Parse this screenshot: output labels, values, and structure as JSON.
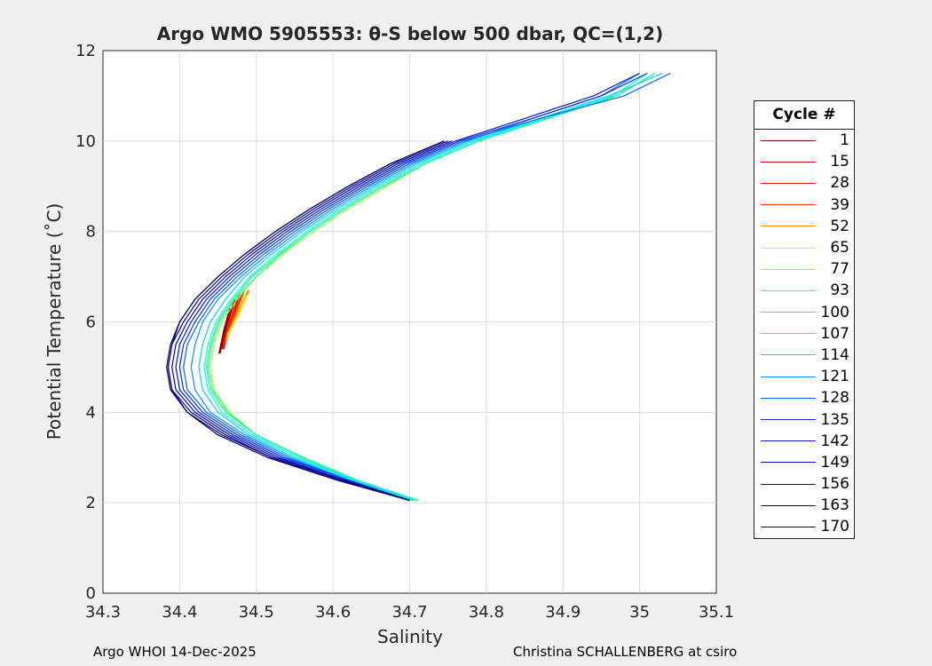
{
  "chart_data": {
    "type": "line",
    "title": "Argo WMO 5905553: θ-S below 500 dbar,  QC=(1,2)",
    "xlabel": "Salinity",
    "ylabel": "Potential Temperature (˚C)",
    "xlim": [
      34.3,
      35.1
    ],
    "ylim": [
      0,
      12
    ],
    "xticks": [
      "34.3",
      "34.4",
      "34.5",
      "34.6",
      "34.7",
      "34.8",
      "34.9",
      "35",
      "35.1"
    ],
    "yticks": [
      "0",
      "2",
      "4",
      "6",
      "8",
      "10",
      "12"
    ],
    "grid": true,
    "legend_title": "Cycle #",
    "legend_position": "right-outside",
    "theta": [
      2.05,
      2.5,
      3,
      3.5,
      4,
      4.5,
      5,
      5.5,
      6,
      6.5,
      7,
      7.5,
      8,
      8.5,
      9,
      9.5,
      10,
      10.5,
      11,
      11.5
    ],
    "series": [
      {
        "name": "1",
        "color": "#800000",
        "theta_range": [
          5.3,
          6.3
        ],
        "salinity": [
          34.452,
          34.458,
          34.466
        ]
      },
      {
        "name": "15",
        "color": "#c00000",
        "theta_range": [
          5.4,
          6.5
        ],
        "salinity": [
          34.455,
          34.462,
          34.472
        ]
      },
      {
        "name": "28",
        "color": "#e81a00",
        "theta_range": [
          5.4,
          6.6
        ],
        "salinity": [
          34.457,
          34.466,
          34.478
        ]
      },
      {
        "name": "39",
        "color": "#ff3000",
        "theta_range": [
          5.5,
          6.7
        ],
        "salinity": [
          34.458,
          34.47,
          34.484
        ]
      },
      {
        "name": "52",
        "color": "#ff8000",
        "theta_range": [
          5.6,
          6.7
        ],
        "salinity": [
          34.46,
          34.474,
          34.49
        ]
      },
      {
        "name": "65",
        "color": "#ffe000",
        "theta_range": [
          5.7,
          6.6
        ],
        "salinity": [
          34.462,
          34.476,
          34.488
        ]
      },
      {
        "name": "77",
        "color": "#90ff30",
        "salinity": [
          34.71,
          34.63,
          34.56,
          34.5,
          34.465,
          34.445,
          34.44,
          34.445,
          34.455,
          34.475,
          34.5,
          34.535,
          34.575,
          34.62,
          34.67,
          34.72,
          34.79,
          34.88,
          34.97,
          35.02
        ]
      },
      {
        "name": "93",
        "color": "#30ff80",
        "salinity": [
          34.712,
          34.632,
          34.562,
          34.5,
          34.463,
          34.443,
          34.437,
          34.442,
          34.452,
          34.472,
          34.5,
          34.532,
          34.57,
          34.615,
          34.665,
          34.72,
          34.79,
          34.88,
          34.97,
          35.02
        ]
      },
      {
        "name": "100",
        "color": "#00ffa0",
        "salinity": [
          34.71,
          34.63,
          34.56,
          34.5,
          34.46,
          34.44,
          34.435,
          34.44,
          34.45,
          34.47,
          34.495,
          34.53,
          34.57,
          34.615,
          34.665,
          34.72,
          34.79,
          34.88,
          34.97,
          35.02
        ]
      },
      {
        "name": "107",
        "color": "#00ffe0",
        "salinity": [
          34.708,
          34.628,
          34.555,
          34.495,
          34.455,
          34.437,
          34.432,
          34.437,
          34.447,
          34.467,
          34.492,
          34.526,
          34.566,
          34.61,
          34.66,
          34.715,
          34.785,
          34.875,
          34.965,
          35.01
        ]
      },
      {
        "name": "114",
        "color": "#00d0ff",
        "salinity": [
          34.705,
          34.625,
          34.55,
          34.49,
          34.45,
          34.43,
          34.425,
          34.43,
          34.44,
          34.46,
          34.485,
          34.52,
          34.56,
          34.605,
          34.655,
          34.71,
          34.78,
          34.87,
          34.96,
          35.03
        ]
      },
      {
        "name": "121",
        "color": "#0090ff",
        "salinity": [
          34.7,
          34.62,
          34.545,
          34.485,
          34.44,
          34.42,
          34.415,
          34.42,
          34.43,
          34.45,
          34.48,
          34.515,
          34.555,
          34.6,
          34.65,
          34.705,
          34.775,
          34.86,
          34.95,
          35.0
        ]
      },
      {
        "name": "128",
        "color": "#0060ff",
        "salinity": [
          34.7,
          34.62,
          34.54,
          34.48,
          34.435,
          34.41,
          34.405,
          34.41,
          34.425,
          34.445,
          34.475,
          34.51,
          34.55,
          34.595,
          34.645,
          34.7,
          34.77,
          34.87,
          34.98,
          35.04
        ]
      },
      {
        "name": "135",
        "color": "#0030e0",
        "salinity": [
          34.7,
          34.62,
          34.535,
          34.475,
          34.43,
          34.405,
          34.4,
          34.405,
          34.42,
          34.44,
          34.47,
          34.505,
          34.545,
          34.59,
          34.64,
          34.695,
          34.765,
          34.86,
          34.95,
          35.01
        ]
      },
      {
        "name": "142",
        "color": "#0018c8",
        "salinity": [
          34.7,
          34.615,
          34.53,
          34.47,
          34.425,
          34.4,
          34.395,
          34.4,
          34.415,
          34.435,
          34.465,
          34.5,
          34.54,
          34.585,
          34.635,
          34.69,
          34.76,
          34.85,
          34.94,
          35.0
        ]
      },
      {
        "name": "149",
        "color": "#0000c0",
        "salinity": [
          34.7,
          34.615,
          34.525,
          34.465,
          34.42,
          34.395,
          34.39,
          34.395,
          34.41,
          34.43,
          34.46,
          34.495,
          34.535,
          34.58,
          34.63,
          34.685,
          34.755
        ]
      },
      {
        "name": "156",
        "color": "#0000a0",
        "salinity": [
          34.7,
          34.61,
          34.52,
          34.46,
          34.415,
          34.39,
          34.385,
          34.39,
          34.405,
          34.425,
          34.455,
          34.49,
          34.53,
          34.575,
          34.625,
          34.68,
          34.75
        ]
      },
      {
        "name": "163",
        "color": "#000080",
        "salinity": [
          34.7,
          34.61,
          34.52,
          34.455,
          34.41,
          34.39,
          34.385,
          34.39,
          34.4,
          34.42,
          34.45,
          34.485,
          34.525,
          34.57,
          34.62,
          34.675,
          34.745
        ]
      },
      {
        "name": "170",
        "color": "#000060",
        "salinity": [
          34.7,
          34.605,
          34.515,
          34.45,
          34.41,
          34.388,
          34.383,
          34.388,
          34.4,
          34.42,
          34.45,
          34.485,
          34.525,
          34.57,
          34.62,
          34.675,
          34.745
        ]
      }
    ]
  },
  "footer": {
    "left": "Argo WHOI 14-Dec-2025",
    "right": "Christina SCHALLENBERG at csiro"
  }
}
